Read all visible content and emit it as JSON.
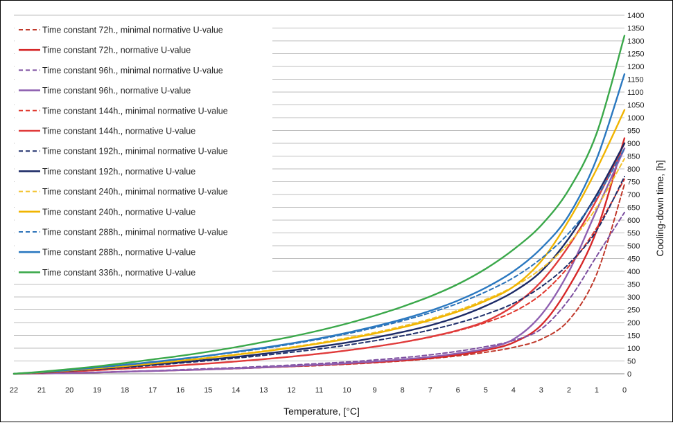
{
  "chart_data": {
    "type": "line",
    "xlabel": "Temperature, [°C]",
    "ylabel": "Cooling-down time, [h]",
    "x": [
      22,
      21,
      20,
      19,
      18,
      17,
      16,
      15,
      14,
      13,
      12,
      11,
      10,
      9,
      8,
      7,
      6,
      5,
      4,
      3,
      2,
      1,
      0
    ],
    "xlim": [
      22,
      0
    ],
    "ylim": [
      0,
      1400
    ],
    "yticks": [
      0,
      50,
      100,
      150,
      200,
      250,
      300,
      350,
      400,
      450,
      500,
      550,
      600,
      650,
      700,
      750,
      800,
      850,
      900,
      950,
      1000,
      1050,
      1100,
      1150,
      1200,
      1250,
      1300,
      1350,
      1400
    ],
    "grid": true,
    "legend_position": "top-left",
    "series": [
      {
        "name": "Time constant 72h., minimal normative U-value",
        "color": "#c0392b",
        "dash": true,
        "values": [
          0,
          1,
          3,
          5,
          8,
          11,
          14,
          17,
          20,
          24,
          28,
          32,
          37,
          43,
          50,
          59,
          70,
          84,
          103,
          135,
          210,
          390,
          740
        ]
      },
      {
        "name": "Time constant 72h., normative U-value",
        "color": "#d62728",
        "dash": false,
        "values": [
          0,
          1,
          3,
          5,
          8,
          11,
          14,
          17,
          21,
          25,
          29,
          34,
          39,
          45,
          52,
          61,
          74,
          92,
          122,
          190,
          340,
          560,
          920
        ]
      },
      {
        "name": "Time constant 96h., minimal normative U-value",
        "color": "#7d4fa0",
        "dash": true,
        "values": [
          0,
          1,
          3,
          6,
          9,
          12,
          16,
          20,
          24,
          29,
          34,
          40,
          46,
          54,
          63,
          74,
          88,
          106,
          130,
          175,
          290,
          460,
          630
        ]
      },
      {
        "name": "Time constant 96h., normative U-value",
        "color": "#8e5fb0",
        "dash": false,
        "values": [
          0,
          1,
          3,
          5,
          8,
          11,
          14,
          17,
          21,
          25,
          30,
          35,
          41,
          48,
          56,
          66,
          80,
          98,
          135,
          230,
          400,
          640,
          880
        ]
      },
      {
        "name": "Time constant 144h., minimal normative U-value",
        "color": "#e0352b",
        "dash": true,
        "values": [
          0,
          4,
          9,
          14,
          20,
          26,
          33,
          40,
          48,
          57,
          67,
          78,
          91,
          106,
          123,
          143,
          168,
          200,
          242,
          310,
          420,
          570,
          760
        ]
      },
      {
        "name": "Time constant 144h., normative U-value",
        "color": "#e03a3a",
        "dash": false,
        "values": [
          0,
          4,
          9,
          14,
          20,
          26,
          33,
          40,
          48,
          57,
          67,
          78,
          91,
          106,
          123,
          144,
          170,
          205,
          265,
          360,
          500,
          680,
          900
        ]
      },
      {
        "name": "Time constant 192h., minimal normative U-value",
        "color": "#1f2f6b",
        "dash": true,
        "values": [
          0,
          5,
          11,
          18,
          25,
          33,
          42,
          51,
          61,
          72,
          84,
          97,
          112,
          129,
          148,
          171,
          198,
          232,
          275,
          340,
          430,
          560,
          770
        ]
      },
      {
        "name": "Time constant 192h., normative U-value",
        "color": "#1c2a66",
        "dash": false,
        "values": [
          0,
          5,
          12,
          19,
          27,
          36,
          45,
          55,
          66,
          78,
          91,
          106,
          122,
          141,
          163,
          189,
          222,
          265,
          320,
          400,
          530,
          700,
          900
        ]
      },
      {
        "name": "Time constant 240h., minimal normative U-value",
        "color": "#f2c22e",
        "dash": true,
        "values": [
          0,
          6,
          14,
          22,
          31,
          41,
          52,
          63,
          76,
          89,
          104,
          121,
          140,
          161,
          186,
          214,
          248,
          290,
          340,
          410,
          510,
          650,
          840
        ]
      },
      {
        "name": "Time constant 240h., normative U-value",
        "color": "#f0b400",
        "dash": false,
        "values": [
          0,
          6,
          13,
          21,
          30,
          40,
          51,
          62,
          74,
          87,
          102,
          118,
          136,
          157,
          181,
          209,
          243,
          285,
          340,
          440,
          600,
          800,
          1030
        ]
      },
      {
        "name": "Time constant 288h., minimal normative U-value",
        "color": "#2b72b8",
        "dash": true,
        "values": [
          0,
          7,
          15,
          24,
          34,
          45,
          57,
          70,
          84,
          99,
          116,
          135,
          156,
          180,
          207,
          238,
          275,
          320,
          375,
          450,
          550,
          690,
          880
        ]
      },
      {
        "name": "Time constant 288h., normative U-value",
        "color": "#2a78c0",
        "dash": false,
        "values": [
          0,
          7,
          15,
          25,
          35,
          46,
          58,
          71,
          86,
          102,
          119,
          138,
          160,
          185,
          213,
          246,
          286,
          336,
          400,
          490,
          620,
          840,
          1170
        ]
      },
      {
        "name": "Time constant 336h., normative U-value",
        "color": "#3aa84a",
        "dash": false,
        "values": [
          0,
          8,
          18,
          29,
          42,
          56,
          70,
          86,
          104,
          124,
          145,
          169,
          196,
          227,
          262,
          302,
          350,
          410,
          485,
          580,
          720,
          940,
          1320
        ]
      }
    ]
  }
}
